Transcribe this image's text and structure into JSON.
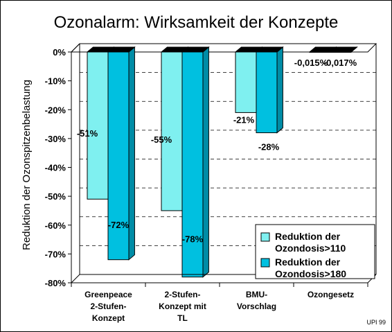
{
  "chart_data": {
    "type": "bar",
    "title": "Ozonalarm: Wirksamkeit der Konzepte",
    "ylabel": "Reduktion der Ozonspitzenbelastung",
    "ylim": [
      -80,
      0
    ],
    "yticks": [
      "0%",
      "-10%",
      "-20%",
      "-30%",
      "-40%",
      "-50%",
      "-60%",
      "-70%",
      "-80%"
    ],
    "grid": true,
    "legend_position": "bottom-right",
    "categories": [
      [
        "Greenpeace",
        "2-Stufen-",
        "Konzept"
      ],
      [
        "2-Stufen-",
        "Konzept mit",
        "TL"
      ],
      [
        "BMU-",
        "Vorschlag"
      ],
      [
        "Ozongesetz"
      ]
    ],
    "series": [
      {
        "name": [
          "Reduktion der",
          "Ozondosis>110"
        ],
        "values": [
          -51,
          -55,
          -21,
          -0.015
        ],
        "labels": [
          "-51%",
          "-55%",
          "-21%",
          "-0,015%"
        ],
        "color": "#7ff0f0",
        "side": "#4fb4b4",
        "top": "#c6ffff"
      },
      {
        "name": [
          "Reduktion der",
          "Ozondosis>180"
        ],
        "values": [
          -72,
          -78,
          -28,
          -0.017
        ],
        "labels": [
          "-72%",
          "-78%",
          "-28%",
          "-0,017%"
        ],
        "color": "#00c0e0",
        "side": "#008ca6",
        "top": "#4fdcf0"
      }
    ],
    "footnote": "UPI 99"
  }
}
